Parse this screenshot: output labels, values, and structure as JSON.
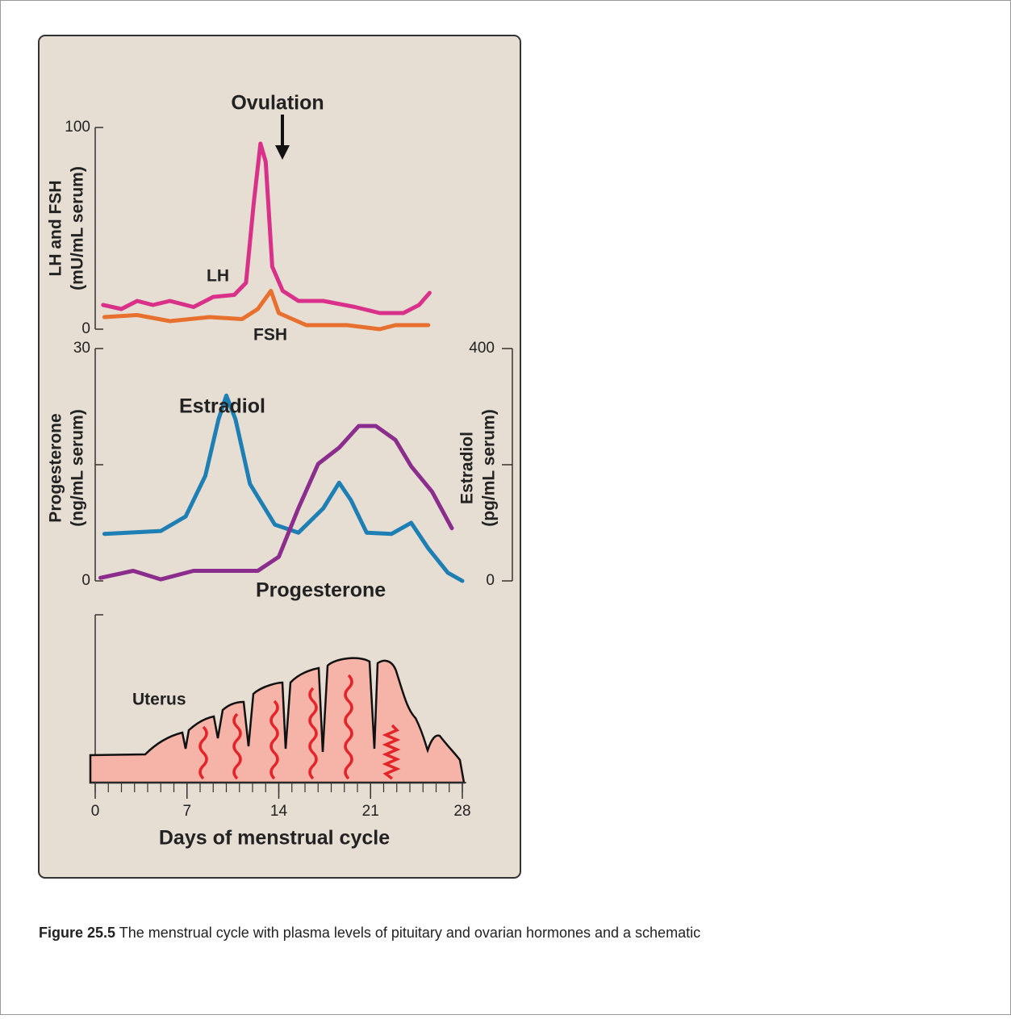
{
  "chart_data": [
    {
      "type": "line",
      "ylabel": [
        "LH and FSH",
        "(mU/mL serum)"
      ],
      "annotation": "Ovulation",
      "xlim": [
        0,
        28
      ],
      "ylim": [
        0,
        100
      ],
      "yticks": [
        0,
        100
      ],
      "series": [
        {
          "name": "LH",
          "color": "#d9318a",
          "x": [
            0.6,
            2,
            3.2,
            4.4,
            5.7,
            7.5,
            9,
            10.6,
            11.5,
            12.1,
            12.6,
            13,
            13.5,
            14.3,
            15.5,
            17.4,
            19.8,
            21.7,
            23.5,
            24.7,
            25.5
          ],
          "values": [
            12,
            10,
            14,
            12,
            14,
            11,
            16,
            17,
            23,
            63,
            92,
            83,
            31,
            19,
            14,
            14,
            11,
            8,
            8,
            12,
            18
          ]
        },
        {
          "name": "FSH",
          "color": "#e8702e",
          "x": [
            0.7,
            3.2,
            5.7,
            8.7,
            11.2,
            12.4,
            13.4,
            14,
            16.1,
            19.2,
            21.7,
            22.9,
            25.4
          ],
          "values": [
            6,
            7,
            4,
            6,
            5,
            10,
            19,
            8,
            2,
            2,
            0,
            2,
            2
          ]
        }
      ]
    },
    {
      "type": "line",
      "ylabel": [
        "Progesterone",
        "(ng/mL serum)"
      ],
      "y2label": [
        "Estradiol",
        "(pg/mL serum)"
      ],
      "xlim": [
        0,
        28
      ],
      "ylim": [
        0,
        30
      ],
      "yticks": [
        0,
        {
          "value": 15,
          "label": null
        },
        30
      ],
      "y2lim": [
        0,
        400
      ],
      "y2ticks": [
        0,
        {
          "value": 200,
          "label": null
        },
        400
      ],
      "series": [
        {
          "name": "Estradiol",
          "color": "#1d7fb4",
          "axis": "y2",
          "x": [
            0.7,
            5,
            6.9,
            8.4,
            9.4,
            10,
            10.7,
            11.8,
            13.7,
            15.5,
            17.4,
            18.6,
            19.5,
            20.7,
            22.6,
            24.1,
            25.4,
            26.9,
            28
          ],
          "values": [
            81,
            86,
            111,
            181,
            278,
            319,
            278,
            167,
            97,
            83,
            125,
            169,
            139,
            83,
            81,
            100,
            56,
            14,
            0
          ]
        },
        {
          "name": "Progesterone",
          "color": "#8b2d8c",
          "x": [
            0.4,
            2.9,
            5,
            7.5,
            12.4,
            14,
            15.5,
            17,
            18.6,
            20.1,
            21.4,
            22.9,
            24.1,
            25.7,
            27.2
          ],
          "values": [
            0.4,
            1.3,
            0.2,
            1.3,
            1.3,
            3.1,
            9.4,
            15.1,
            17.2,
            20,
            20,
            18.2,
            14.8,
            11.5,
            6.8
          ]
        }
      ]
    },
    {
      "type": "schematic",
      "label": "Uterus",
      "xlabel": "Days of menstrual cycle",
      "xlim": [
        0,
        28
      ],
      "xticks": [
        0,
        7,
        14,
        21,
        28
      ]
    }
  ],
  "caption": {
    "label": "Figure 25.5",
    "text": "The menstrual cycle with plasma levels of pituitary and ovarian hormones and a schematic"
  }
}
